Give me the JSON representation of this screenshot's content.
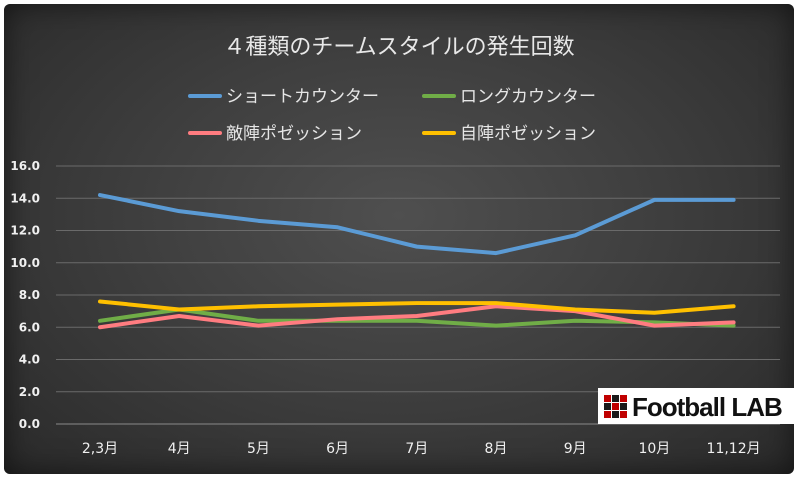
{
  "chart_data": {
    "type": "line",
    "title": "４種類のチームスタイルの発生回数",
    "categories": [
      "2,3月",
      "4月",
      "5月",
      "6月",
      "7月",
      "8月",
      "9月",
      "10月",
      "11,12月"
    ],
    "series": [
      {
        "name": "ショートカウンター",
        "color": "#5b9bd5",
        "values": [
          14.2,
          13.2,
          12.6,
          12.2,
          11.0,
          10.6,
          11.7,
          13.9,
          13.9
        ]
      },
      {
        "name": "ロングカウンター",
        "color": "#70ad47",
        "values": [
          6.4,
          7.1,
          6.4,
          6.4,
          6.4,
          6.1,
          6.4,
          6.3,
          6.1
        ]
      },
      {
        "name": "敵陣ポゼッション",
        "color": "#ff7c80",
        "values": [
          6.0,
          6.7,
          6.1,
          6.5,
          6.7,
          7.3,
          7.0,
          6.1,
          6.3
        ]
      },
      {
        "name": "自陣ポゼッション",
        "color": "#ffc000",
        "values": [
          7.6,
          7.1,
          7.3,
          7.4,
          7.5,
          7.5,
          7.1,
          6.9,
          7.3
        ]
      }
    ],
    "yticks": [
      "0.0",
      "2.0",
      "4.0",
      "6.0",
      "8.0",
      "10.0",
      "12.0",
      "14.0",
      "16.0"
    ],
    "ylim": [
      0,
      16
    ],
    "grid": true,
    "legend": "top"
  },
  "logo": {
    "text": "Football LAB"
  }
}
